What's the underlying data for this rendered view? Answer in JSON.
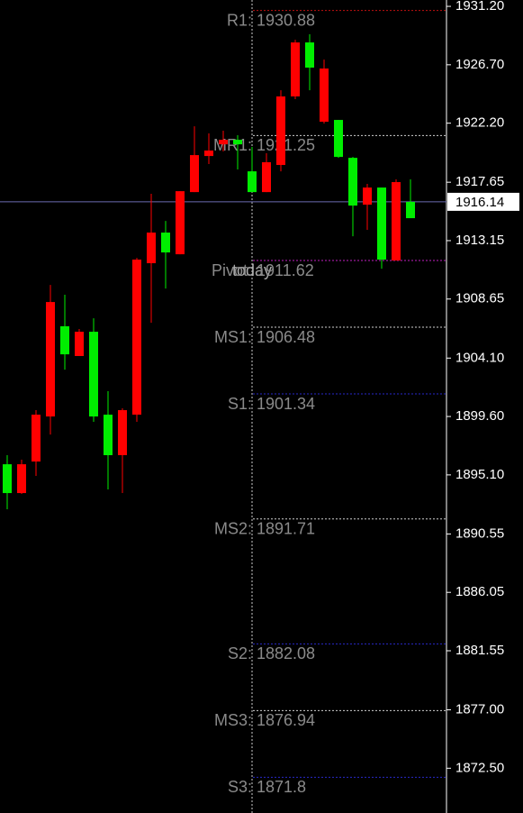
{
  "chart_data": {
    "type": "candlestick",
    "bull_color": "#00ee00",
    "bear_color": "#ff0000",
    "open": [
      1893.7,
      1895.92,
      1899.74,
      1908.42,
      1904.39,
      1906.13,
      1899.6,
      1896.62,
      1900.09,
      1911.69,
      1913.77,
      1912.24,
      1916.96,
      1919.74,
      1920.09,
      1920.92,
      1920.57,
      1916.89,
      1919.19,
      1924.26,
      1928.42,
      1926.48,
      1926.41,
      1919.6,
      1915.85,
      1917.24,
      1911.69,
      1917.66,
      1914.88
    ],
    "high": [
      1896.62,
      1896.27,
      1900.09,
      1909.74,
      1908.98,
      1906.34,
      1907.17,
      1901.55,
      1900.23,
      1911.82,
      1916.76,
      1914.67,
      1916.96,
      1921.96,
      1921.41,
      1921.62,
      1921.27,
      1920.37,
      1919.88,
      1924.74,
      1928.63,
      1929.05,
      1927.1,
      1922.45,
      1919.6,
      1917.52,
      1917.24,
      1917.87,
      1917.87
    ],
    "low": [
      1892.45,
      1893.63,
      1895.02,
      1898.21,
      1903.21,
      1904.26,
      1899.19,
      1893.98,
      1893.7,
      1899.19,
      1906.82,
      1909.46,
      1912.1,
      1916.89,
      1919.05,
      1920.02,
      1918.63,
      1916.89,
      1916.89,
      1918.49,
      1924.05,
      1924.74,
      1922.17,
      1919.53,
      1913.49,
      1913.98,
      1910.99,
      1911.62,
      1914.88
    ],
    "close": [
      1895.92,
      1893.7,
      1896.13,
      1899.6,
      1906.55,
      1904.26,
      1906.13,
      1899.74,
      1896.62,
      1899.74,
      1911.41,
      1913.77,
      1912.1,
      1916.89,
      1919.67,
      1920.57,
      1920.92,
      1918.49,
      1916.89,
      1918.98,
      1924.26,
      1928.42,
      1922.31,
      1922.45,
      1919.53,
      1915.92,
      1917.24,
      1911.62,
      1916.14
    ],
    "ylim": [
      1869.05,
      1931.69
    ],
    "yticks": [
      {
        "value": 1931.2,
        "label": "1931.20"
      },
      {
        "value": 1926.7,
        "label": "1926.70"
      },
      {
        "value": 1922.2,
        "label": "1922.20"
      },
      1917.65,
      1913.15,
      1908.65,
      {
        "value": 1904.1,
        "label": "1904.10"
      },
      {
        "value": 1899.6,
        "label": "1899.60"
      },
      {
        "value": 1895.1,
        "label": "1895.10"
      },
      1890.55,
      1886.05,
      1881.55,
      {
        "value": 1877,
        "label": "1877.00"
      },
      {
        "value": 1872.5,
        "label": "1872.50"
      }
    ],
    "current_price": 1916.14,
    "current_price_color": "#6a6ab0",
    "separator_label": "today",
    "levels": [
      {
        "name": "R1:",
        "value": 1930.88,
        "color": "#c01010"
      },
      {
        "name": "MR1:",
        "value": 1921.25,
        "color": "#d0d0d0"
      },
      {
        "name": "Pivot:",
        "value": 1911.62,
        "color": "#c020c0"
      },
      {
        "name": "MS1:",
        "value": 1906.48,
        "color": "#d0d0d0"
      },
      {
        "name": "S1:",
        "value": 1901.34,
        "color": "#2828c8"
      },
      {
        "name": "MS2:",
        "value": 1891.71,
        "color": "#d0d0d0"
      },
      {
        "name": "S2:",
        "value": 1882.08,
        "color": "#2828c8"
      },
      {
        "name": "MS3:",
        "value": 1876.94,
        "color": "#d0d0d0"
      },
      {
        "name": "S3:",
        "value": 1871.8,
        "color": "#2828c8"
      }
    ]
  }
}
